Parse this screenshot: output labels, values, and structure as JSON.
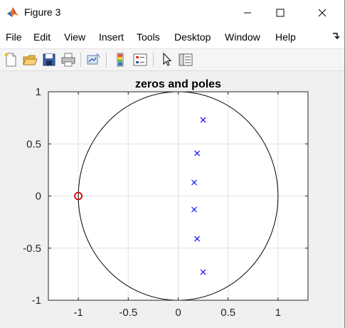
{
  "window": {
    "title": "Figure 3",
    "controls": {
      "minimize": "minimize",
      "maximize": "maximize",
      "close": "close"
    }
  },
  "menu": {
    "items": [
      "File",
      "Edit",
      "View",
      "Insert",
      "Tools",
      "Desktop",
      "Window",
      "Help"
    ]
  },
  "toolbar": {
    "buttons": [
      "new-figure-icon",
      "open-file-icon",
      "save-icon",
      "print-icon",
      "link-plot-icon",
      "insert-colorbar-icon",
      "insert-legend-icon",
      "edit-plot-cursor-icon",
      "property-inspector-icon"
    ]
  },
  "colors": {
    "poles": "#0000ff",
    "zeros": "#d40000",
    "unit_circle": "#000000",
    "figure_bg": "#f0f0f0",
    "axes_bg": "#ffffff",
    "grid": "#e0e0e0"
  },
  "chart_data": {
    "type": "scatter",
    "title": "zeros and poles",
    "xlabel": "",
    "ylabel": "",
    "xlim": [
      -1.3,
      1.3
    ],
    "ylim": [
      -1,
      1
    ],
    "x_ticks": [
      -1,
      -0.5,
      0,
      0.5,
      1
    ],
    "x_tick_labels": [
      "-1",
      "-0.5",
      "0",
      "0.5",
      "1"
    ],
    "y_ticks": [
      1,
      0.5,
      0,
      -0.5,
      -1
    ],
    "y_tick_labels": [
      "1",
      "0.5",
      "0",
      "-0.5",
      "-1"
    ],
    "grid": true,
    "unit_circle": {
      "center": [
        0,
        0
      ],
      "radius": 1
    },
    "series": [
      {
        "marker": "x",
        "points": [
          [
            0.25,
            0.73
          ],
          [
            0.19,
            0.41
          ],
          [
            0.16,
            0.13
          ],
          [
            0.16,
            -0.13
          ],
          [
            0.19,
            -0.41
          ],
          [
            0.25,
            -0.73
          ]
        ]
      },
      {
        "marker": "o",
        "points": [
          [
            -1.0,
            0.0
          ]
        ]
      }
    ]
  }
}
